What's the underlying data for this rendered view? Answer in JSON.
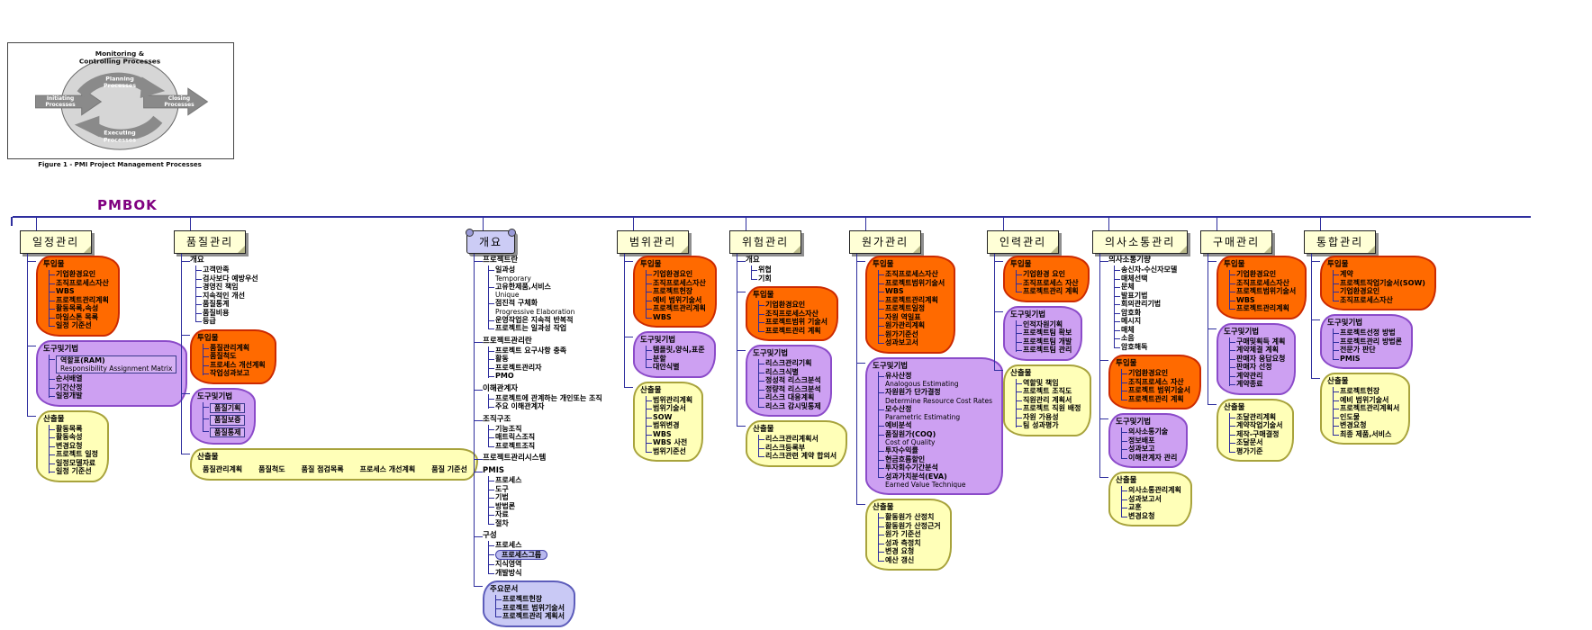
{
  "title": "PMBOK",
  "figure": {
    "caption": "Figure 1 - PMI Project Management Processes",
    "labels": {
      "monitoring": [
        "Monitoring &",
        "Controlling Processes"
      ],
      "planning": [
        "Planning",
        "Processes"
      ],
      "initiating": [
        "Initiating",
        "Processes"
      ],
      "executing": [
        "Executing",
        "Processes"
      ],
      "closing": [
        "Closing",
        "Processes"
      ]
    }
  },
  "colors": {
    "inputs_cloud": "#ff6a00",
    "tools_cloud": "#cda0f2",
    "outputs_cloud": "#ffffb8",
    "note_cloud": "#c9c9f5",
    "header_fill": "#ffffd6",
    "line": "#2e2e9e",
    "title_color": "#800080"
  },
  "branches": [
    {
      "label": "일정관리",
      "groups": [
        {
          "label": "투입물",
          "color": "orange",
          "items": [
            "기업환경요인",
            "조직프로세스자산",
            "WBS",
            "프로젝트관리계획",
            "활동목록,속성",
            "마일스톤 목록",
            "일정 기준선"
          ]
        },
        {
          "label": "도구및기법",
          "color": "purple",
          "items": [
            {
              "text": "역할표(RAM)",
              "sub": "Responsibility Assignment Matrix",
              "boxed": true
            },
            "순서배열",
            "기간산정",
            "일정개발"
          ]
        },
        {
          "label": "산출물",
          "color": "yellow",
          "items": [
            "활동목록",
            "활동속성",
            "변경요청",
            "프로젝트 일정",
            "일정모델자료",
            "일정 기준선"
          ]
        }
      ]
    },
    {
      "label": "품질관리",
      "groups": [
        {
          "label": "개요",
          "color": "plain",
          "items": [
            "고객만족",
            "검사보다 예방우선",
            "경영진 책임",
            "지속적인 개선",
            "품질통계",
            "품질비용",
            "등급"
          ]
        },
        {
          "label": "투입물",
          "color": "orange",
          "items": [
            "품질관리계획",
            "품질척도",
            "프로세스 개선계획",
            "작업성과보고"
          ]
        },
        {
          "label": "도구및기법",
          "color": "purple",
          "items": [
            {
              "text": "품질기획",
              "boxed": true
            },
            {
              "text": "품질보증",
              "boxed": true
            },
            {
              "text": "품질통제",
              "boxed": true
            }
          ]
        },
        {
          "label": "산출물",
          "color": "yellow",
          "layout": "row",
          "items": [
            "품질관리계획",
            "품질척도",
            "품질 점검목록",
            "프로세스 개선계획",
            "품질 기준선"
          ]
        }
      ]
    },
    {
      "label": "개요",
      "header_shape": "scroll",
      "groups": [
        {
          "label": "프로젝트란",
          "color": "plain",
          "items": [
            {
              "text": "일과성",
              "sub": "Temporary"
            },
            {
              "text": "고유한제품,서비스",
              "sub": "Unique"
            },
            {
              "text": "점진적 구체화",
              "sub": "Progressive Elaboration"
            },
            "운영작업은 지속적 반복적",
            "프로젝트는 일과성 작업"
          ]
        },
        {
          "label": "프로젝트관리란",
          "color": "plain",
          "items": [
            "프로젝트 요구사항 충족",
            "활동",
            "프로젝트관리자",
            "PMO"
          ]
        },
        {
          "label": "이해관계자",
          "color": "plain",
          "items": [
            "프로젝트에 관계하는 개인또는 조직",
            "주요 이해관계자"
          ]
        },
        {
          "label": "조직구조",
          "color": "plain",
          "items": [
            "기능조직",
            "매트릭스조직",
            "프로젝트조직"
          ]
        },
        {
          "label": "프로젝트관리시스템",
          "color": "plain",
          "items": []
        },
        {
          "label": "PMIS",
          "color": "plain",
          "items": [
            "프로세스",
            "도구",
            "기법",
            "방법론",
            "자료",
            "절차"
          ]
        },
        {
          "label": "구성",
          "color": "plain",
          "items": [
            "프로세스",
            {
              "text": "프로세스그룹",
              "cloud": true
            },
            "지식영역",
            "개발방식"
          ]
        },
        {
          "label": "주요문서",
          "color": "blue",
          "items": [
            "프로젝트헌장",
            "프로젝트 범위기술서",
            "프로젝트관리 계획서"
          ]
        }
      ]
    },
    {
      "label": "범위관리",
      "groups": [
        {
          "label": "투입물",
          "color": "orange",
          "items": [
            "기업환경요인",
            "조직프로세스자산",
            "프로젝트헌장",
            "예비 범위기술서",
            "프로젝트관리계획",
            "WBS"
          ]
        },
        {
          "label": "도구및기법",
          "color": "purple",
          "items": [
            "템플릿,양식,표준",
            "분할",
            "대안식별"
          ]
        },
        {
          "label": "산출물",
          "color": "yellow",
          "items": [
            "범위관리계획",
            "범위기술서",
            "SOW",
            "범위변경",
            "WBS",
            "WBS 사전",
            "범위기준선"
          ]
        }
      ]
    },
    {
      "label": "위험관리",
      "groups": [
        {
          "label": "개요",
          "color": "plain",
          "items": [
            "위협",
            "기회"
          ]
        },
        {
          "label": "투입물",
          "color": "orange",
          "items": [
            "기업환경요인",
            "조직프로세스자산",
            "프로젝트범위 기술서",
            "프로젝트관리 계획"
          ]
        },
        {
          "label": "도구및기법",
          "color": "purple",
          "items": [
            "리스크관리기획",
            "리스크식별",
            "정성적 리스크분석",
            "정량적 리스크분석",
            "리스크 대응계획",
            "리스크 감시및통제"
          ]
        },
        {
          "label": "산출물",
          "color": "yellow",
          "items": [
            "리스크관리계획서",
            "리스크등록부",
            "리스크관련 계약 합의서"
          ]
        }
      ]
    },
    {
      "label": "원가관리",
      "groups": [
        {
          "label": "투입물",
          "color": "orange",
          "items": [
            "조직프로세스자산",
            "프로젝트범위기술서",
            "WBS",
            "프로젝트관리계획",
            "프로젝트일정",
            "자원 역일표",
            "원가관리계획",
            "원가기준선",
            "성과보고서"
          ]
        },
        {
          "label": "도구및기법",
          "color": "purple",
          "items": [
            {
              "text": "유사산정",
              "sub": "Analogous Estimating"
            },
            {
              "text": "자원원가 단가결정",
              "sub": "Determine Resource Cost Rates"
            },
            {
              "text": "모수산정",
              "sub": "Parametric Estimating"
            },
            "예비분석",
            {
              "text": "품질원가(COQ)",
              "sub": "Cost of Quality"
            },
            "투자수익률",
            "현금흐름할인",
            "투자회수기간분석",
            {
              "text": "성과가치분석(EVA)",
              "sub": "Earned Value Technique"
            }
          ]
        },
        {
          "label": "산출물",
          "color": "yellow",
          "items": [
            "활동원가 산정치",
            "활동원가 산정근거",
            "원가 기준선",
            "성과 측정치",
            "변경 요청",
            "예산 갱신"
          ]
        }
      ]
    },
    {
      "label": "인력관리",
      "groups": [
        {
          "label": "투입물",
          "color": "orange",
          "items": [
            "기업환경 요인",
            "조직프로세스 자산",
            "프로젝트관리 계획"
          ]
        },
        {
          "label": "도구및기법",
          "color": "purple",
          "items": [
            "인적자원기획",
            "프로젝트팀 확보",
            "프로젝트팀 개발",
            "프로젝트팀 관리"
          ]
        },
        {
          "label": "산출물",
          "color": "yellow",
          "items": [
            "역할및 책임",
            "프로젝트 조직도",
            "직원관리 계획서",
            "프로젝트 직원 배정",
            "자원 가용성",
            "팀 성과평가"
          ]
        }
      ]
    },
    {
      "label": "의사소통관리",
      "groups": [
        {
          "label": "의사소통기량",
          "color": "plain",
          "items": [
            "송신자-수신자모델",
            "매체선택",
            "문체",
            "발표기법",
            "회의관리기법",
            "암호화",
            "메시지",
            "매체",
            "소음",
            "암호해독"
          ]
        },
        {
          "label": "투입물",
          "color": "orange",
          "items": [
            "기업환경요인",
            "조직프로세스 자산",
            "프로젝트 범위기술서",
            "프로젝트관리 계획"
          ]
        },
        {
          "label": "도구및기법",
          "color": "purple",
          "items": [
            "의사소통기술",
            "정보배포",
            "성과보고",
            "이해관계자 관리"
          ]
        },
        {
          "label": "산출물",
          "color": "yellow",
          "items": [
            "의사소통관리계획",
            "성과보고서",
            "교훈",
            "변경요청"
          ]
        }
      ]
    },
    {
      "label": "구매관리",
      "groups": [
        {
          "label": "투입물",
          "color": "orange",
          "items": [
            "기업환경요인",
            "조직프로세스자산",
            "프로젝트범위기술서",
            "WBS",
            "프로젝트관리계획"
          ]
        },
        {
          "label": "도구및기법",
          "color": "purple",
          "items": [
            "구매및획득 계획",
            "계약체결 계획",
            "판매자 응답요청",
            "판매자 선정",
            "계약관리",
            "계약종료"
          ]
        },
        {
          "label": "산출물",
          "color": "yellow",
          "items": [
            "조달관리계획",
            "계약작업기술서",
            "제작-구매결정",
            "조달문서",
            "평가기준"
          ]
        }
      ]
    },
    {
      "label": "통합관리",
      "groups": [
        {
          "label": "투입물",
          "color": "orange",
          "items": [
            "계약",
            "프로젝트작업기술서(SOW)",
            "기업환경요인",
            "조직프로세스자산"
          ]
        },
        {
          "label": "도구및기법",
          "color": "purple",
          "items": [
            "프로젝트선정 방법",
            "프로젝트관리 방법론",
            "전문가 판단",
            "PMIS"
          ]
        },
        {
          "label": "산출물",
          "color": "yellow",
          "items": [
            "프로젝트헌장",
            "예비 범위기술서",
            "프로젝트관리계획서",
            "인도물",
            "변경요청",
            "최종 제품,서비스"
          ]
        }
      ]
    }
  ]
}
